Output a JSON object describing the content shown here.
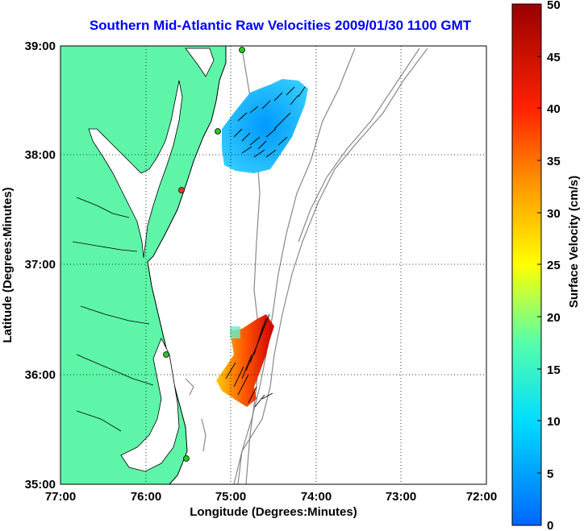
{
  "title": "Southern Mid-Atlantic Raw Velocities 2009/01/30 1100 GMT",
  "map": {
    "xlabel": "Longitude (Degrees:Minutes)",
    "ylabel": "Latitude (Degrees:Minutes)",
    "x_ticks": [
      "77:00",
      "76:00",
      "75:00",
      "74:00",
      "73:00",
      "72:00"
    ],
    "y_ticks": [
      "39:00",
      "38:00",
      "37:00",
      "36:00",
      "35:00"
    ],
    "lon_range": [
      -77,
      -72
    ],
    "lat_range": [
      35,
      39
    ],
    "land_color": "#5ef5a8",
    "grid": "dotted"
  },
  "colorbar": {
    "label": "Surface Velocity (cm/s)",
    "ticks": [
      "50",
      "45",
      "40",
      "35",
      "30",
      "25",
      "20",
      "15",
      "10",
      "5",
      "0"
    ],
    "range": [
      0,
      50
    ],
    "colormap": "jet"
  }
}
